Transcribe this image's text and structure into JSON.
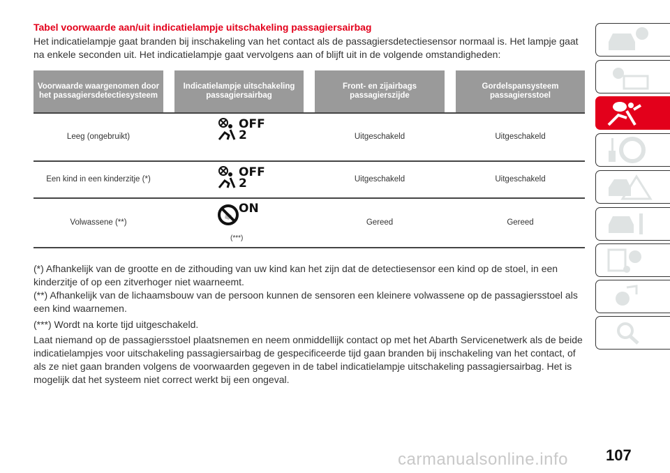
{
  "title": "Tabel voorwaarde aan/uit indicatielampje uitschakeling passagiersairbag",
  "intro_line1": "Het indicatielampje gaat branden bij inschakeling van het contact als de passagiersdetectiesensor normaal is. Het lampje gaat",
  "intro_line2": "na enkele seconden uit. Het indicatielampje gaat vervolgens aan of blijft uit in de volgende omstandigheden:",
  "table": {
    "headers": [
      "Voorwaarde waargenomen door het passagiersdetectiesysteem",
      "Indicatielampje uitschakeling passagiersairbag",
      "Front- en zijairbags passagierszijde",
      "Gordelspansysteem passagiersstoel"
    ],
    "rows": [
      {
        "condition": "Leeg (ongebruikt)",
        "lamp": "OFF",
        "lamp_num": "2",
        "lamp_note": "",
        "airbags": "Uitgeschakeld",
        "pretensioner": "Uitgeschakeld"
      },
      {
        "condition": "Een kind in een kinderzitje (*)",
        "lamp": "OFF",
        "lamp_num": "2",
        "lamp_note": "",
        "airbags": "Uitgeschakeld",
        "pretensioner": "Uitgeschakeld"
      },
      {
        "condition": "Volwassene (**)",
        "lamp": "ON",
        "lamp_num": "",
        "lamp_note": "(***)",
        "airbags": "Gereed",
        "pretensioner": "Gereed"
      }
    ]
  },
  "notes": [
    "(*) Afhankelijk van de grootte en de zithouding van uw kind kan het zijn dat de detectiesensor een kind op de stoel, in een",
    "kinderzitje of op een zitverhoger niet waarneemt.",
    "(**) Afhankelijk van de lichaamsbouw van de persoon kunnen de sensoren een kleinere volwassene op de passagiersstoel als",
    "een kind waarnemen.",
    "(***) Wordt na korte tijd uitgeschakeld.",
    "Laat niemand op de passagiersstoel plaatsnemen en neem onmiddellijk contact op met het Abarth Servicenetwerk als de beide",
    "indicatielampjes voor uitschakeling passagiersairbag de gespecificeerde tijd gaan branden bij inschakeling van het contact, of",
    "als ze niet gaan branden volgens de voorwaarden gegeven in de tabel indicatielampje uitschakeling passagiersairbag. Het is",
    "mogelijk dat het systeem niet correct werkt bij een ongeval."
  ],
  "sidebar_tabs": [
    {
      "icon": "car-info-icon",
      "active": false
    },
    {
      "icon": "warning-light-message-icon",
      "active": false
    },
    {
      "icon": "airbag-seatbelt-icon",
      "active": true
    },
    {
      "icon": "key-steering-wheel-icon",
      "active": false
    },
    {
      "icon": "car-emergency-icon",
      "active": false
    },
    {
      "icon": "car-wrench-icon",
      "active": false
    },
    {
      "icon": "specs-gear-icon",
      "active": false
    },
    {
      "icon": "multimedia-icon",
      "active": false
    },
    {
      "icon": "index-search-icon",
      "active": false
    }
  ],
  "page_number": "107",
  "watermark": "carmanualsonline.info",
  "colors": {
    "accent": "#e3001b",
    "header_bg": "#9a9a9a",
    "tab_icon": "#dfe3e3"
  }
}
